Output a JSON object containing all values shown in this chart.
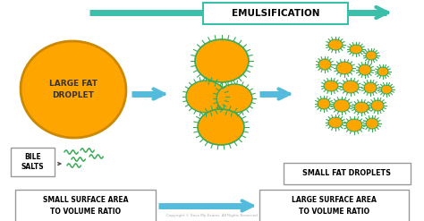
{
  "bg_color": "#ffffff",
  "orange_color": "#FFA500",
  "orange_edge": "#cc8800",
  "green_color": "#3aaa55",
  "teal_color": "#3bbfaa",
  "arrow_color": "#55bbdd",
  "text_color": "#333333",
  "box_border": "#999999",
  "title": "EMULSIFICATION",
  "label_large": "LARGE FAT\nDROPLET",
  "label_bile": "BILE\nSALTS",
  "label_small_fd": "SMALL FAT DROPLETS",
  "label_small_sa": "SMALL SURFACE AREA\nTO VOLUME RATIO",
  "label_large_sa": "LARGE SURFACE AREA\nTO VOLUME RATIO",
  "copyright": "Copyright © Save My Exams. All Rights Reserved"
}
